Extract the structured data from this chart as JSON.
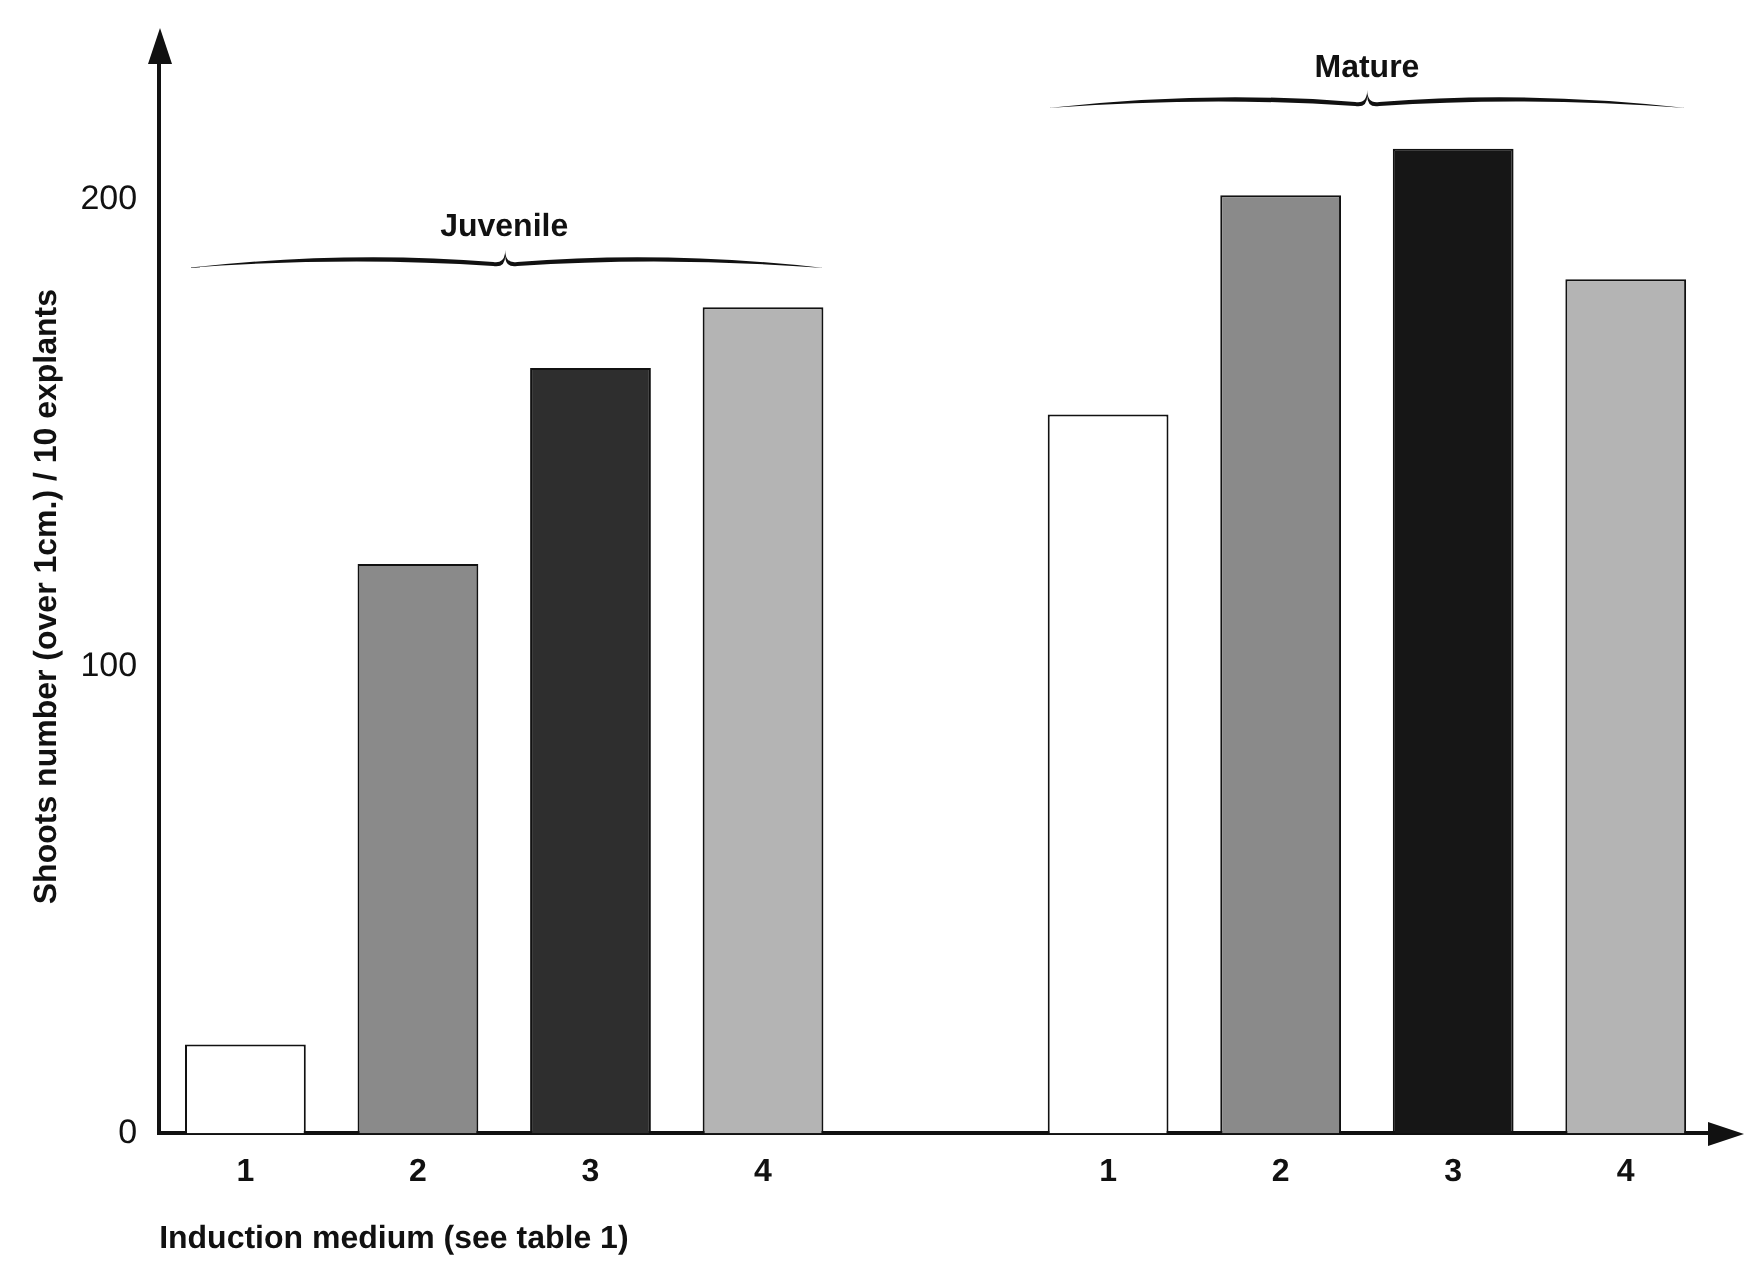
{
  "chart_data": {
    "type": "bar",
    "xlabel": "Induction medium (see table 1)",
    "ylabel": "Shoots number (over 1cm.) / 10 explants",
    "categories": [
      "1",
      "2",
      "3",
      "4",
      null,
      "1",
      "2",
      "3",
      "4"
    ],
    "values": [
      19,
      122,
      164,
      177,
      null,
      154,
      201,
      211,
      183
    ],
    "colors": [
      "#ffffff",
      "#8a8a8a",
      "#2e2e2e",
      "#b4b4b4",
      "#ffffff",
      "#ffffff",
      "#8a8a8a",
      "#161616",
      "#b4b4b4"
    ],
    "ylim": [
      0,
      230
    ],
    "yticks": [
      0,
      100,
      200
    ],
    "grid": false,
    "legend": false,
    "annotations": [
      "Juvenile",
      "Mature"
    ]
  }
}
